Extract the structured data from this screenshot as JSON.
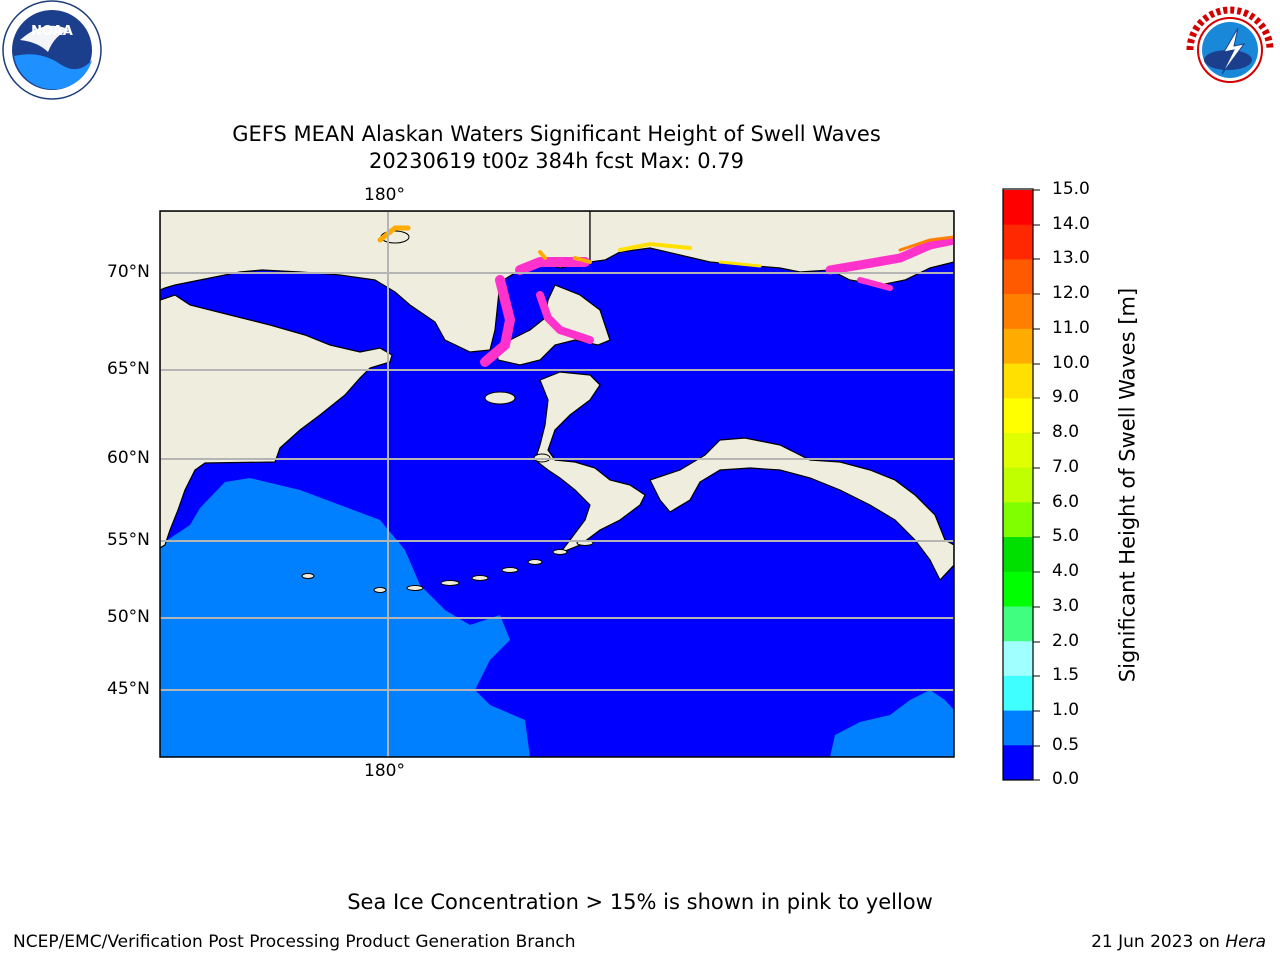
{
  "title_line1": "GEFS MEAN Alaskan Waters Significant Height of Swell Waves",
  "title_line2": "20230619 t00z 384h fcst   Max: 0.79",
  "map": {
    "top_lon_label": "180°",
    "bottom_lon_label": "180°",
    "lat_labels": [
      "70°N",
      "65°N",
      "60°N",
      "55°N",
      "50°N",
      "45°N"
    ],
    "colors": {
      "land": "#efedde",
      "coast": "#000000",
      "grid": "#b5b5b5",
      "swell_0_05": "#0000ff",
      "swell_05_1": "#0080ff",
      "ice": "#ff33cc"
    }
  },
  "colorbar": {
    "label": "Significant Height of Swell Waves [m]",
    "ticks": [
      "15.0",
      "14.0",
      "13.0",
      "12.0",
      "11.0",
      "10.0",
      "9.0",
      "8.0",
      "7.0",
      "6.0",
      "5.0",
      "4.0",
      "3.0",
      "2.0",
      "1.5",
      "1.0",
      "0.5",
      "0.0"
    ],
    "colors_top_to_bottom": [
      "#ff0000",
      "#ff2800",
      "#ff5a00",
      "#ff8000",
      "#ffab00",
      "#ffe000",
      "#ffff00",
      "#e0ff00",
      "#c0ff00",
      "#80ff00",
      "#00e000",
      "#00ff00",
      "#40ff80",
      "#a0ffff",
      "#40ffff",
      "#00ffff",
      "#0080ff",
      "#0000ff"
    ]
  },
  "note": "Sea Ice Concentration > 15% is shown in pink to yellow",
  "footer": {
    "left": "NCEP/EMC/Verification Post Processing Product Generation Branch",
    "date": "21 Jun 2023 on ",
    "machine": "Hera"
  },
  "logos": {
    "left": "noaa-logo",
    "right": "nws-logo"
  }
}
